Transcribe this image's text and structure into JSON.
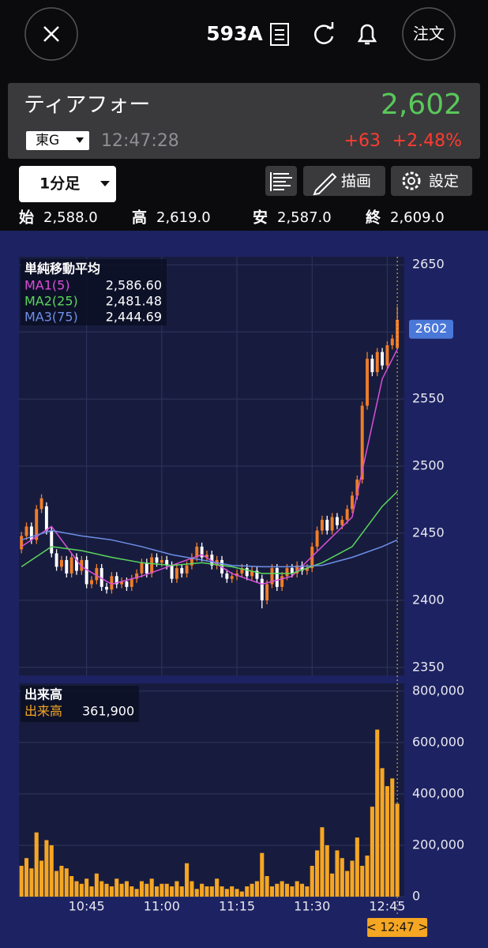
{
  "header": {
    "symbol": "593A",
    "order": "注文"
  },
  "quote": {
    "name": "ティアフォー",
    "price": "2,602",
    "market": "東G",
    "time": "12:47:28",
    "change": "+63",
    "change_pct": "+2.48%"
  },
  "toolbar": {
    "interval": "1分足",
    "draw": "描画",
    "settings": "設定"
  },
  "ohlc": {
    "open_label": "始",
    "open": "2,588.0",
    "high_label": "高",
    "high": "2,619.0",
    "low_label": "安",
    "low": "2,587.0",
    "close_label": "終",
    "close": "2,609.0"
  },
  "chart_data": [
    {
      "type": "candlestick",
      "up_color": "#f07d28",
      "down_color": "#ffffff",
      "ylim": [
        2344,
        2656
      ],
      "yticks": [
        2350,
        2400,
        2450,
        2500,
        2550,
        2600,
        2650
      ],
      "xlim": [
        -0.5,
        76.4
      ],
      "xticks": [
        {
          "value": 13,
          "label": "10:45"
        },
        {
          "value": 28,
          "label": "11:00"
        },
        {
          "value": 43,
          "label": "11:15"
        },
        {
          "value": 58,
          "label": "11:30"
        },
        {
          "value": 73,
          "label": "12:45"
        }
      ],
      "grid": true,
      "price_tag": 2602,
      "legend_title": "単純移動平均",
      "open": [
        2438,
        2448,
        2455,
        2445,
        2468,
        2470,
        2452,
        2435,
        2425,
        2430,
        2420,
        2432,
        2422,
        2430,
        2412,
        2415,
        2424,
        2410,
        2408,
        2418,
        2412,
        2414,
        2410,
        2416,
        2420,
        2428,
        2420,
        2432,
        2428,
        2430,
        2426,
        2416,
        2424,
        2420,
        2426,
        2432,
        2440,
        2432,
        2434,
        2426,
        2430,
        2420,
        2416,
        2418,
        2420,
        2424,
        2418,
        2422,
        2416,
        2400,
        2412,
        2424,
        2410,
        2418,
        2424,
        2420,
        2426,
        2422,
        2424,
        2440,
        2452,
        2460,
        2452,
        2462,
        2456,
        2460,
        2468,
        2478,
        2490,
        2545,
        2580,
        2570,
        2585,
        2575,
        2590,
        2588
      ],
      "high": [
        2451,
        2458,
        2458,
        2471,
        2479,
        2473,
        2455,
        2438,
        2433,
        2433,
        2435,
        2435,
        2433,
        2433,
        2418,
        2427,
        2427,
        2413,
        2421,
        2421,
        2417,
        2417,
        2419,
        2423,
        2431,
        2431,
        2435,
        2435,
        2433,
        2433,
        2429,
        2427,
        2427,
        2429,
        2435,
        2443,
        2443,
        2437,
        2437,
        2433,
        2433,
        2423,
        2421,
        2423,
        2427,
        2427,
        2425,
        2425,
        2419,
        2415,
        2427,
        2427,
        2421,
        2427,
        2427,
        2429,
        2429,
        2427,
        2443,
        2455,
        2463,
        2463,
        2465,
        2465,
        2463,
        2471,
        2481,
        2493,
        2548,
        2585,
        2583,
        2588,
        2588,
        2593,
        2598,
        2619
      ],
      "low": [
        2435,
        2445,
        2442,
        2442,
        2465,
        2449,
        2432,
        2422,
        2422,
        2417,
        2417,
        2419,
        2419,
        2409,
        2409,
        2412,
        2407,
        2405,
        2405,
        2409,
        2409,
        2407,
        2407,
        2413,
        2417,
        2417,
        2417,
        2425,
        2425,
        2423,
        2413,
        2413,
        2417,
        2417,
        2423,
        2429,
        2429,
        2429,
        2423,
        2423,
        2417,
        2413,
        2413,
        2415,
        2417,
        2415,
        2415,
        2413,
        2394,
        2397,
        2409,
        2407,
        2407,
        2415,
        2417,
        2417,
        2419,
        2419,
        2421,
        2437,
        2449,
        2449,
        2449,
        2453,
        2453,
        2457,
        2465,
        2475,
        2487,
        2542,
        2567,
        2567,
        2572,
        2572,
        2587,
        2587
      ],
      "close": [
        2448,
        2455,
        2445,
        2468,
        2476,
        2452,
        2435,
        2425,
        2430,
        2420,
        2432,
        2422,
        2430,
        2412,
        2415,
        2424,
        2410,
        2408,
        2418,
        2412,
        2414,
        2410,
        2416,
        2420,
        2428,
        2420,
        2432,
        2428,
        2430,
        2426,
        2416,
        2424,
        2420,
        2426,
        2432,
        2440,
        2432,
        2434,
        2426,
        2430,
        2420,
        2416,
        2418,
        2420,
        2424,
        2418,
        2422,
        2416,
        2400,
        2412,
        2424,
        2410,
        2418,
        2424,
        2420,
        2426,
        2422,
        2424,
        2440,
        2452,
        2460,
        2452,
        2462,
        2456,
        2460,
        2468,
        2478,
        2490,
        2545,
        2580,
        2570,
        2585,
        2575,
        2590,
        2595,
        2609
      ],
      "series": [
        {
          "name": "MA1(5)",
          "color": "#d94fd9",
          "legend_value": "2,586.60",
          "x": [
            0,
            6,
            12,
            18,
            24,
            30,
            36,
            42,
            48,
            54,
            60,
            66,
            72,
            75
          ],
          "values": [
            2440,
            2455,
            2425,
            2412,
            2418,
            2426,
            2434,
            2420,
            2412,
            2418,
            2440,
            2462,
            2565,
            2587
          ]
        },
        {
          "name": "MA2(25)",
          "color": "#5cd65c",
          "legend_value": "2,481.48",
          "x": [
            0,
            6,
            12,
            18,
            24,
            30,
            36,
            42,
            48,
            54,
            60,
            66,
            72,
            75
          ],
          "values": [
            2425,
            2440,
            2437,
            2432,
            2428,
            2426,
            2428,
            2425,
            2420,
            2420,
            2428,
            2440,
            2470,
            2481
          ]
        },
        {
          "name": "MA3(75)",
          "color": "#6f8fe8",
          "legend_value": "2,444.69",
          "x": [
            0,
            6,
            12,
            18,
            24,
            30,
            36,
            42,
            48,
            54,
            60,
            66,
            72,
            75
          ],
          "values": [
            2445,
            2452,
            2448,
            2445,
            2440,
            2434,
            2430,
            2426,
            2425,
            2425,
            2426,
            2432,
            2440,
            2445
          ]
        }
      ]
    },
    {
      "type": "bar",
      "title": "出来高",
      "color": "#f5a623",
      "ylim": [
        0,
        830000
      ],
      "xlim": [
        -0.5,
        76.4
      ],
      "yticks": [
        {
          "value": 0,
          "label": "0"
        },
        {
          "value": 200000,
          "label": "200,000"
        },
        {
          "value": 400000,
          "label": "400,000"
        },
        {
          "value": 600000,
          "label": "600,000"
        },
        {
          "value": 800000,
          "label": "800,000"
        }
      ],
      "series_name": "出来高",
      "legend_value": "361,900",
      "cursor_label": "< 12:47 >",
      "values": [
        120000,
        150000,
        110000,
        250000,
        140000,
        220000,
        200000,
        100000,
        120000,
        110000,
        80000,
        60000,
        50000,
        70000,
        40000,
        90000,
        60000,
        50000,
        40000,
        70000,
        50000,
        60000,
        40000,
        30000,
        60000,
        50000,
        70000,
        40000,
        50000,
        50000,
        40000,
        60000,
        40000,
        130000,
        60000,
        30000,
        50000,
        40000,
        40000,
        70000,
        40000,
        30000,
        40000,
        30000,
        20000,
        40000,
        50000,
        60000,
        170000,
        80000,
        40000,
        50000,
        60000,
        50000,
        40000,
        60000,
        50000,
        40000,
        120000,
        180000,
        270000,
        200000,
        90000,
        180000,
        150000,
        100000,
        140000,
        230000,
        120000,
        160000,
        350000,
        650000,
        500000,
        430000,
        460000,
        361900
      ]
    }
  ]
}
